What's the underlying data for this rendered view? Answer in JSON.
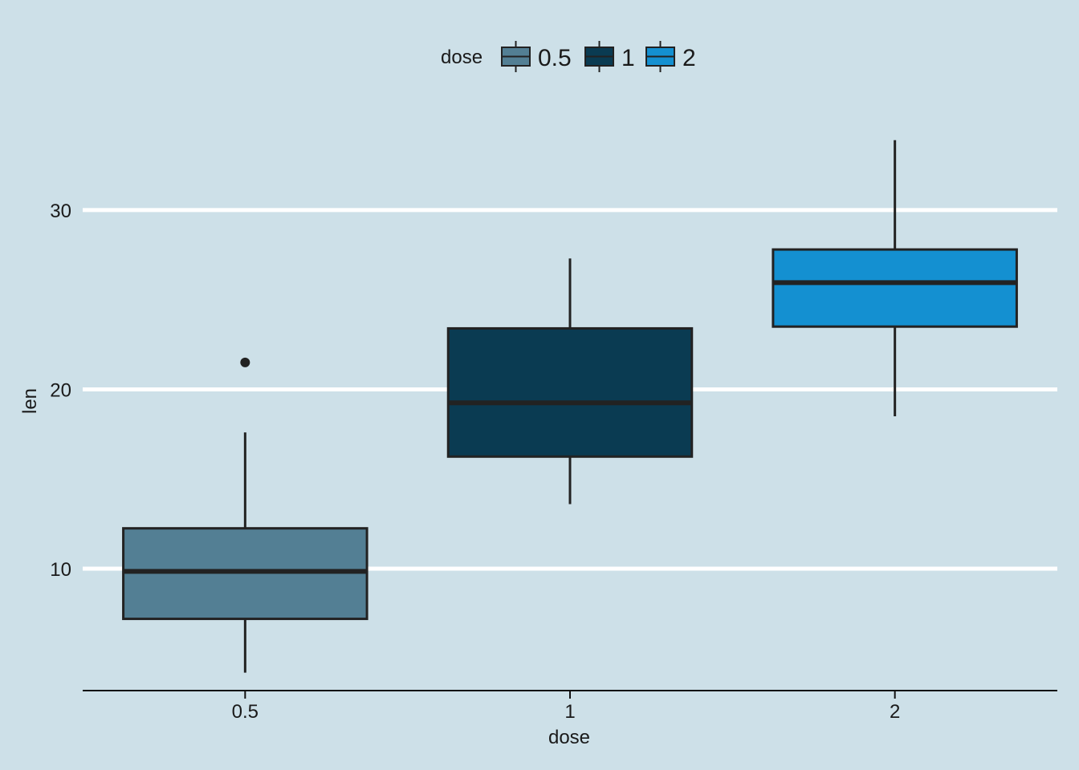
{
  "chart_data": {
    "type": "box",
    "title": "",
    "xlabel": "dose",
    "ylabel": "len",
    "categories": [
      "0.5",
      "1",
      "2"
    ],
    "ylim": [
      3.2,
      35.9
    ],
    "yticks": [
      10,
      20,
      30
    ],
    "grid": "horizontal major",
    "legend_position": "top",
    "legend": {
      "title": "dose",
      "entries": [
        "0.5",
        "1",
        "2"
      ]
    },
    "series": [
      {
        "name": "0.5",
        "min": 4.2,
        "q1": 7.2,
        "median": 9.85,
        "q3": 12.25,
        "max": 17.6,
        "outliers": [
          21.5
        ],
        "color": "#537f94"
      },
      {
        "name": "1",
        "min": 13.6,
        "q1": 16.25,
        "median": 19.25,
        "q3": 23.4,
        "max": 27.3,
        "outliers": [],
        "color": "#0a3b52"
      },
      {
        "name": "2",
        "min": 18.5,
        "q1": 23.5,
        "median": 25.95,
        "q3": 27.8,
        "max": 33.9,
        "outliers": [],
        "color": "#1490d1"
      }
    ],
    "colors": {
      "background": "#cde0e8",
      "gridline": "#ffffff",
      "outline": "#222222"
    }
  }
}
